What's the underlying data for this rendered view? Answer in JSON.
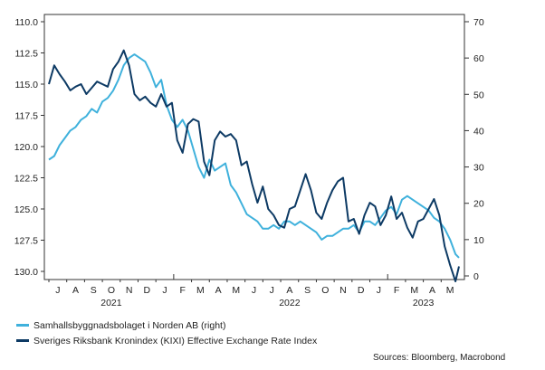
{
  "chart_data": {
    "type": "line",
    "title": "",
    "xlabel": "",
    "left_axis": {
      "label": "",
      "inverted": true,
      "range": [
        110.0,
        130.0
      ],
      "ticks": [
        "110.0",
        "112.5",
        "115.0",
        "117.5",
        "120.0",
        "122.5",
        "125.0",
        "127.5",
        "130.0"
      ]
    },
    "right_axis": {
      "label": "",
      "range": [
        0,
        70
      ],
      "ticks": [
        "0",
        "10",
        "20",
        "30",
        "40",
        "50",
        "60",
        "70"
      ]
    },
    "x_range": [
      "2021-06",
      "2023-05"
    ],
    "month_labels": [
      "J",
      "A",
      "S",
      "O",
      "N",
      "D",
      "J",
      "F",
      "M",
      "A",
      "M",
      "J",
      "J",
      "A",
      "S",
      "O",
      "N",
      "D",
      "J",
      "F",
      "M",
      "A",
      "M"
    ],
    "year_labels": [
      {
        "label": "2021",
        "month_index": 3
      },
      {
        "label": "2022",
        "month_index": 13
      },
      {
        "label": "2023",
        "month_index": 20.5
      }
    ],
    "grid": false,
    "legend_position": "bottom-left",
    "series": [
      {
        "name": "Samhallsbyggnadsbolaget i Norden AB (right)",
        "axis": "right",
        "color": "#3fb1dc",
        "x": [
          0,
          0.3,
          0.6,
          0.9,
          1.2,
          1.5,
          1.8,
          2.1,
          2.4,
          2.7,
          3.0,
          3.3,
          3.6,
          3.9,
          4.2,
          4.5,
          4.8,
          5.1,
          5.4,
          5.7,
          6.0,
          6.3,
          6.6,
          6.9,
          7.2,
          7.5,
          7.8,
          8.1,
          8.4,
          8.7,
          9.0,
          9.3,
          9.6,
          9.9,
          10.2,
          10.5,
          10.8,
          11.1,
          11.4,
          11.7,
          12.0,
          12.3,
          12.6,
          12.9,
          13.2,
          13.5,
          13.8,
          14.1,
          14.4,
          14.7,
          15.0,
          15.3,
          15.6,
          15.9,
          16.2,
          16.5,
          16.8,
          17.1,
          17.4,
          17.7,
          18.0,
          18.3,
          18.6,
          18.9,
          19.2,
          19.5,
          19.8,
          20.1,
          20.4,
          20.7,
          21.0,
          21.3,
          21.6,
          21.9,
          22.2,
          22.5,
          22.8,
          23.0
        ],
        "values": [
          32,
          33,
          36,
          38,
          40,
          41,
          43,
          44,
          46,
          45,
          48,
          49,
          51,
          54,
          58,
          60,
          61,
          60,
          59,
          56,
          52,
          54,
          47,
          43,
          41,
          43,
          40,
          35,
          30,
          27,
          32,
          29,
          30,
          31,
          25,
          23,
          20,
          17,
          16,
          15,
          13,
          13,
          14,
          13,
          15,
          15,
          14,
          15,
          14,
          13,
          12,
          10,
          11,
          11,
          12,
          13,
          13,
          14,
          12,
          15,
          15,
          14,
          16,
          18,
          19,
          17,
          21,
          22,
          21,
          20,
          19,
          18,
          16,
          15,
          13,
          10,
          6,
          5
        ]
      },
      {
        "name": "Sveriges Riksbank Kronindex (KIXI) Effective Exchange Rate Index",
        "axis": "left",
        "color": "#0d3a64",
        "x": [
          0,
          0.3,
          0.6,
          0.9,
          1.2,
          1.5,
          1.8,
          2.1,
          2.4,
          2.7,
          3.0,
          3.3,
          3.6,
          3.9,
          4.2,
          4.5,
          4.8,
          5.1,
          5.4,
          5.7,
          6.0,
          6.3,
          6.6,
          6.9,
          7.2,
          7.5,
          7.8,
          8.1,
          8.4,
          8.7,
          9.0,
          9.3,
          9.6,
          9.9,
          10.2,
          10.5,
          10.8,
          11.1,
          11.4,
          11.7,
          12.0,
          12.3,
          12.6,
          12.9,
          13.2,
          13.5,
          13.8,
          14.1,
          14.4,
          14.7,
          15.0,
          15.3,
          15.6,
          15.9,
          16.2,
          16.5,
          16.8,
          17.1,
          17.4,
          17.7,
          18.0,
          18.3,
          18.6,
          18.9,
          19.2,
          19.5,
          19.8,
          20.1,
          20.4,
          20.7,
          21.0,
          21.3,
          21.6,
          21.9,
          22.2,
          22.5,
          22.8,
          23.0
        ],
        "values": [
          115.0,
          113.5,
          114.2,
          114.8,
          115.5,
          115.2,
          115.0,
          115.8,
          115.3,
          114.8,
          115.0,
          115.2,
          113.8,
          113.2,
          112.3,
          113.5,
          115.8,
          116.3,
          116.0,
          116.5,
          116.8,
          115.8,
          116.8,
          116.5,
          119.5,
          120.5,
          118.2,
          117.8,
          118.0,
          121.2,
          122.3,
          119.5,
          118.8,
          119.2,
          119.0,
          119.5,
          121.5,
          121.2,
          123.0,
          124.5,
          123.2,
          125.0,
          125.5,
          126.3,
          126.5,
          125.0,
          124.8,
          123.5,
          122.2,
          123.5,
          125.3,
          125.8,
          124.5,
          123.5,
          122.8,
          122.5,
          126.0,
          125.8,
          127.0,
          125.5,
          124.5,
          124.8,
          126.3,
          125.5,
          124.0,
          125.8,
          125.3,
          126.5,
          127.3,
          126.0,
          125.8,
          125.0,
          124.2,
          125.5,
          128.0,
          129.5,
          130.8,
          129.6
        ]
      }
    ]
  },
  "legend": [
    {
      "label": "Samhallsbyggnadsbolaget i Norden AB (right)",
      "color": "#3fb1dc"
    },
    {
      "label": "Sveriges Riksbank Kronindex (KIXI) Effective Exchange Rate Index",
      "color": "#0d3a64"
    }
  ],
  "source_note": "Sources: Bloomberg, Macrobond"
}
